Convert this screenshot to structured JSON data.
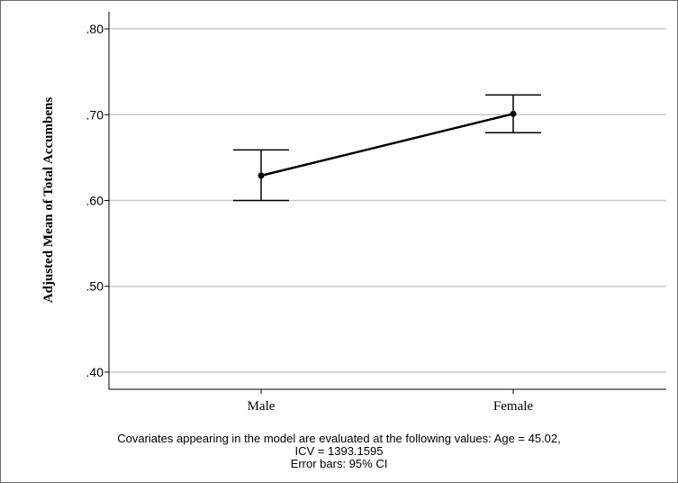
{
  "chart_data": {
    "type": "line",
    "categories": [
      "Male",
      "Female"
    ],
    "series": [
      {
        "values": [
          0.629,
          0.701
        ],
        "ci_lower": [
          0.6,
          0.679
        ],
        "ci_upper": [
          0.659,
          0.723
        ]
      }
    ],
    "ylabel": "Adjusted Mean of Total Accumbens",
    "xlabel": "",
    "title": "",
    "ylim": [
      0.38,
      0.82
    ],
    "yticks": [
      0.4,
      0.5,
      0.6,
      0.7,
      0.8
    ],
    "ytick_labels": [
      ".40",
      ".50",
      ".60",
      ".70",
      ".80"
    ],
    "grid": true,
    "legend": "none"
  },
  "footnote": {
    "line1": "Covariates appearing in the model are evaluated at the following values: Age = 45.02,",
    "line2": "ICV = 1393.1595",
    "line3": "Error bars: 95% CI"
  },
  "colors": {
    "line": "#000000",
    "grid": "#c8c8c8",
    "frame": "#6b6b6b"
  }
}
